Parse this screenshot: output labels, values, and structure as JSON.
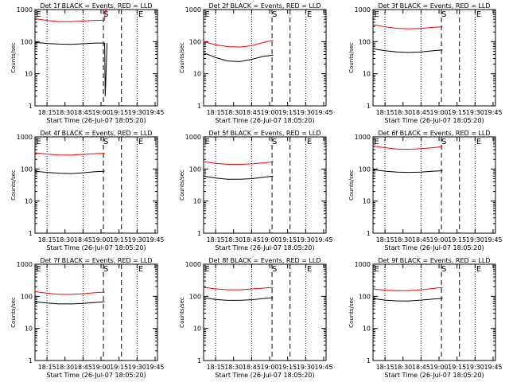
{
  "common": {
    "xlabel": "Start Time (26-Jul-07 18:05:20)",
    "ylabel": "Counts/sec",
    "x_tick_labels": [
      "18:15",
      "18:30",
      "18:45",
      "19:00",
      "19:15",
      "19:30",
      "19:45"
    ],
    "y_tick_labels": [
      "1",
      "10",
      "100",
      "1000"
    ],
    "dashed_markers": [
      {
        "label": "S",
        "time": "19:00"
      },
      {
        "label": "E",
        "time": "19:15"
      },
      {
        "label": "E",
        "time": "18:05"
      }
    ],
    "colors": {
      "events": "#000000",
      "lld": "#ff0000"
    }
  },
  "chart_data": [
    {
      "type": "line",
      "title": "Det 1f BLACK = Events, RED = LLD",
      "x_unit": "minutes since 18:05:20",
      "xlim": [
        0,
        102
      ],
      "ylim": [
        1,
        1000
      ],
      "yscale": "log",
      "series": [
        {
          "name": "Events",
          "points": [
            [
              0,
              95
            ],
            [
              10,
              88
            ],
            [
              20,
              84
            ],
            [
              30,
              82
            ],
            [
              40,
              86
            ],
            [
              50,
              90
            ],
            [
              58,
              90
            ],
            [
              58.5,
              2
            ],
            [
              60,
              90
            ]
          ]
        },
        {
          "name": "LLD",
          "points": [
            [
              0,
              520
            ],
            [
              10,
              460
            ],
            [
              20,
              420
            ],
            [
              30,
              420
            ],
            [
              40,
              440
            ],
            [
              50,
              460
            ],
            [
              58,
              470
            ],
            [
              58.5,
              1000
            ],
            [
              60,
              800
            ]
          ]
        }
      ]
    },
    {
      "type": "line",
      "title": "Det 2f BLACK = Events, RED = LLD",
      "x_unit": "minutes since 18:05:20",
      "xlim": [
        0,
        102
      ],
      "ylim": [
        1,
        1000
      ],
      "yscale": "log",
      "series": [
        {
          "name": "Events",
          "points": [
            [
              0,
              45
            ],
            [
              10,
              32
            ],
            [
              20,
              25
            ],
            [
              30,
              24
            ],
            [
              40,
              28
            ],
            [
              50,
              35
            ],
            [
              58,
              38
            ]
          ]
        },
        {
          "name": "LLD",
          "points": [
            [
              0,
              100
            ],
            [
              10,
              80
            ],
            [
              20,
              70
            ],
            [
              30,
              68
            ],
            [
              40,
              75
            ],
            [
              50,
              95
            ],
            [
              58,
              110
            ]
          ]
        }
      ]
    },
    {
      "type": "line",
      "title": "Det 3f BLACK = Events, RED = LLD",
      "x_unit": "minutes since 18:05:20",
      "xlim": [
        0,
        102
      ],
      "ylim": [
        1,
        1000
      ],
      "yscale": "log",
      "series": [
        {
          "name": "Events",
          "points": [
            [
              0,
              60
            ],
            [
              10,
              52
            ],
            [
              20,
              48
            ],
            [
              30,
              46
            ],
            [
              40,
              48
            ],
            [
              50,
              52
            ],
            [
              58,
              55
            ]
          ]
        },
        {
          "name": "LLD",
          "points": [
            [
              0,
              340
            ],
            [
              10,
              290
            ],
            [
              20,
              260
            ],
            [
              30,
              250
            ],
            [
              40,
              260
            ],
            [
              50,
              280
            ],
            [
              58,
              290
            ]
          ]
        }
      ]
    },
    {
      "type": "line",
      "title": "Det 4f BLACK = Events, RED = LLD",
      "x_unit": "minutes since 18:05:20",
      "xlim": [
        0,
        102
      ],
      "ylim": [
        1,
        1000
      ],
      "yscale": "log",
      "series": [
        {
          "name": "Events",
          "points": [
            [
              0,
              85
            ],
            [
              10,
              78
            ],
            [
              20,
              74
            ],
            [
              30,
              72
            ],
            [
              40,
              76
            ],
            [
              50,
              82
            ],
            [
              58,
              85
            ]
          ]
        },
        {
          "name": "LLD",
          "points": [
            [
              0,
              320
            ],
            [
              10,
              290
            ],
            [
              20,
              270
            ],
            [
              30,
              270
            ],
            [
              40,
              285
            ],
            [
              50,
              300
            ],
            [
              58,
              310
            ]
          ]
        }
      ]
    },
    {
      "type": "line",
      "title": "Det 5f BLACK = Events, RED = LLD",
      "x_unit": "minutes since 18:05:20",
      "xlim": [
        0,
        102
      ],
      "ylim": [
        1,
        1000
      ],
      "yscale": "log",
      "series": [
        {
          "name": "Events",
          "points": [
            [
              0,
              60
            ],
            [
              10,
              52
            ],
            [
              20,
              48
            ],
            [
              30,
              48
            ],
            [
              40,
              50
            ],
            [
              50,
              55
            ],
            [
              58,
              60
            ]
          ]
        },
        {
          "name": "LLD",
          "points": [
            [
              0,
              170
            ],
            [
              10,
              150
            ],
            [
              20,
              140
            ],
            [
              30,
              140
            ],
            [
              40,
              145
            ],
            [
              50,
              155
            ],
            [
              58,
              165
            ]
          ]
        }
      ]
    },
    {
      "type": "line",
      "title": "Det 6f BLACK = Events, RED = LLD",
      "x_unit": "minutes since 18:05:20",
      "xlim": [
        0,
        102
      ],
      "ylim": [
        1,
        1000
      ],
      "yscale": "log",
      "series": [
        {
          "name": "Events",
          "points": [
            [
              0,
              95
            ],
            [
              10,
              85
            ],
            [
              20,
              80
            ],
            [
              30,
              78
            ],
            [
              40,
              80
            ],
            [
              50,
              85
            ],
            [
              58,
              88
            ]
          ]
        },
        {
          "name": "LLD",
          "points": [
            [
              0,
              520
            ],
            [
              10,
              460
            ],
            [
              20,
              420
            ],
            [
              30,
              410
            ],
            [
              40,
              430
            ],
            [
              50,
              460
            ],
            [
              58,
              500
            ]
          ]
        }
      ]
    },
    {
      "type": "line",
      "title": "Det 7f BLACK = Events, RED = LLD",
      "x_unit": "minutes since 18:05:20",
      "xlim": [
        0,
        102
      ],
      "ylim": [
        1,
        1000
      ],
      "yscale": "log",
      "series": [
        {
          "name": "Events",
          "points": [
            [
              0,
              68
            ],
            [
              10,
              62
            ],
            [
              20,
              58
            ],
            [
              30,
              58
            ],
            [
              40,
              60
            ],
            [
              50,
              64
            ],
            [
              58,
              68
            ]
          ]
        },
        {
          "name": "LLD",
          "points": [
            [
              0,
              140
            ],
            [
              10,
              125
            ],
            [
              20,
              115
            ],
            [
              30,
              115
            ],
            [
              40,
              120
            ],
            [
              50,
              130
            ],
            [
              58,
              135
            ]
          ]
        }
      ]
    },
    {
      "type": "line",
      "title": "Det 8f BLACK = Events, RED = LLD",
      "x_unit": "minutes since 18:05:20",
      "xlim": [
        0,
        102
      ],
      "ylim": [
        1,
        1000
      ],
      "yscale": "log",
      "series": [
        {
          "name": "Events",
          "points": [
            [
              0,
              90
            ],
            [
              10,
              80
            ],
            [
              20,
              75
            ],
            [
              30,
              75
            ],
            [
              40,
              78
            ],
            [
              50,
              85
            ],
            [
              58,
              90
            ]
          ]
        },
        {
          "name": "LLD",
          "points": [
            [
              0,
              190
            ],
            [
              10,
              170
            ],
            [
              20,
              160
            ],
            [
              30,
              160
            ],
            [
              40,
              170
            ],
            [
              50,
              180
            ],
            [
              58,
              190
            ]
          ]
        }
      ]
    },
    {
      "type": "line",
      "title": "Det 9f BLACK = Events, RED = LLD",
      "x_unit": "minutes since 18:05:20",
      "xlim": [
        0,
        102
      ],
      "ylim": [
        1,
        1000
      ],
      "yscale": "log",
      "series": [
        {
          "name": "Events",
          "points": [
            [
              0,
              85
            ],
            [
              10,
              76
            ],
            [
              20,
              72
            ],
            [
              30,
              72
            ],
            [
              40,
              76
            ],
            [
              50,
              82
            ],
            [
              58,
              86
            ]
          ]
        },
        {
          "name": "LLD",
          "points": [
            [
              0,
              170
            ],
            [
              10,
              155
            ],
            [
              20,
              150
            ],
            [
              30,
              150
            ],
            [
              40,
              160
            ],
            [
              50,
              175
            ],
            [
              58,
              190
            ]
          ]
        }
      ]
    }
  ]
}
